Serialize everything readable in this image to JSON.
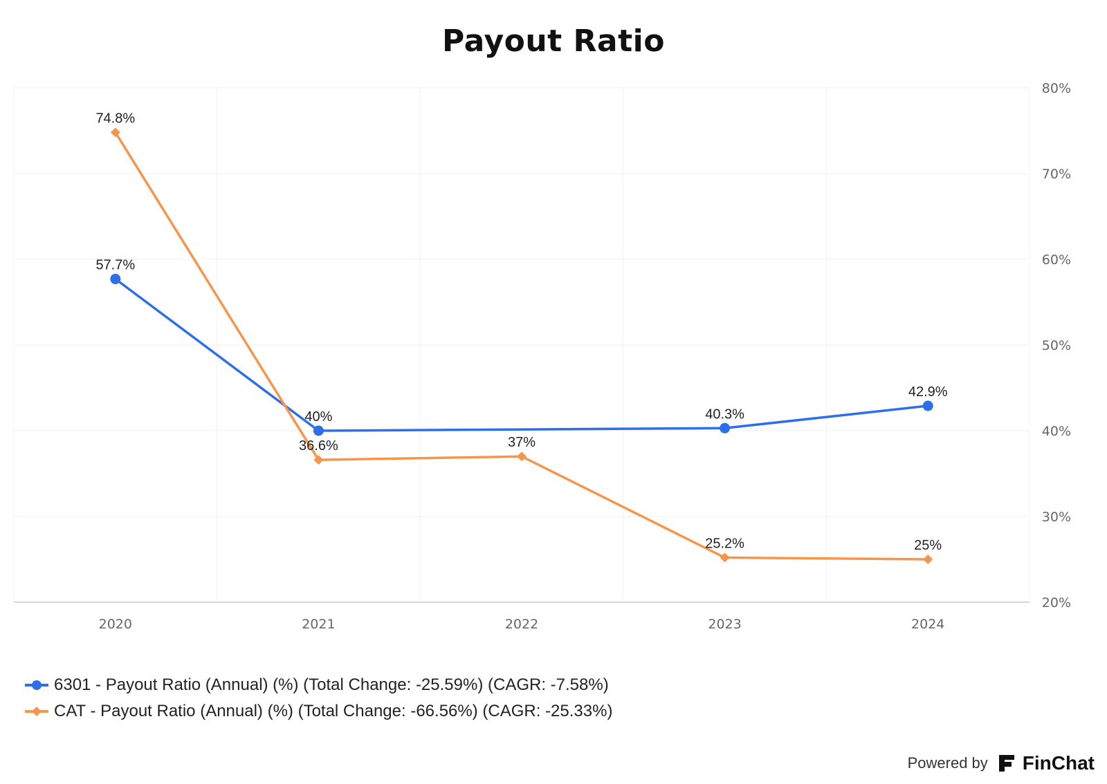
{
  "chart_data": {
    "type": "line",
    "title": "Payout Ratio",
    "categories": [
      "2020",
      "2021",
      "2022",
      "2023",
      "2024"
    ],
    "y_ticks": [
      "20%",
      "30%",
      "40%",
      "50%",
      "60%",
      "70%",
      "80%"
    ],
    "ylim": [
      20,
      80
    ],
    "y_axis_side": "right",
    "grid": true,
    "legend_position": "bottom-left",
    "series": [
      {
        "name": "6301 - Payout Ratio (Annual) (%) (Total Change: -25.59%) (CAGR: -7.58%)",
        "color": "#2d6fe8",
        "marker": "circle",
        "x": [
          "2020",
          "2021",
          "2023",
          "2024"
        ],
        "values": [
          57.7,
          40.0,
          40.3,
          42.9
        ],
        "labels": [
          "57.7%",
          "40%",
          "40.3%",
          "42.9%"
        ]
      },
      {
        "name": "CAT - Payout Ratio (Annual) (%) (Total Change: -66.56%) (CAGR: -25.33%)",
        "color": "#f7954a",
        "marker": "diamond",
        "x": [
          "2020",
          "2021",
          "2022",
          "2023",
          "2024"
        ],
        "values": [
          74.8,
          36.6,
          37.0,
          25.2,
          25.0
        ],
        "labels": [
          "74.8%",
          "36.6%",
          "37%",
          "25.2%",
          "25%"
        ]
      }
    ]
  },
  "footer": {
    "powered_by": "Powered by",
    "brand": "FinChat",
    "brand_icon": "finchat-logo-icon"
  }
}
